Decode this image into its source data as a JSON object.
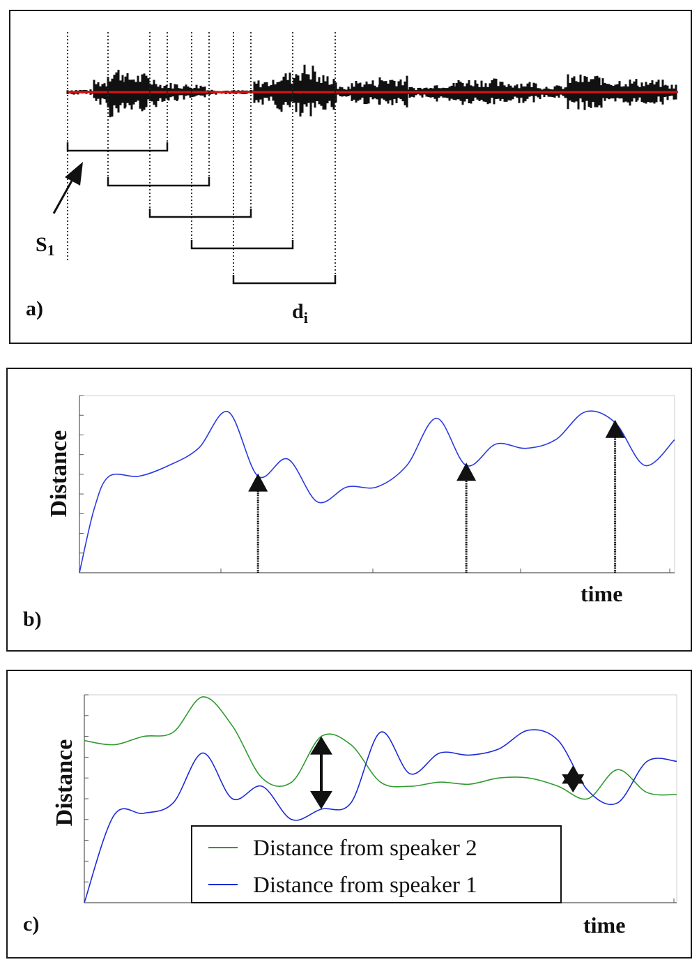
{
  "panel_a": {
    "label": "a)",
    "start_label": "S",
    "start_label_subscript": "1",
    "window_label": "d",
    "window_label_subscript": "i",
    "waveform_color": "#111111",
    "baseline_color": "#e01010"
  },
  "panel_b": {
    "label": "b)",
    "ylabel": "Distance",
    "xlabel": "time",
    "curve_color": "#2b3be0"
  },
  "panel_c": {
    "label": "c)",
    "ylabel": "Distance",
    "xlabel": "time",
    "legend": [
      {
        "name": "Distance from speaker 2",
        "color": "#2f9a2f"
      },
      {
        "name": "Distance from speaker 1",
        "color": "#1d2bd6"
      }
    ]
  },
  "chart_data": [
    {
      "type": "line",
      "panel": "b",
      "xlabel": "time",
      "ylabel": "Distance",
      "x": [
        0,
        0.5,
        1,
        2,
        3,
        4,
        5,
        6,
        7,
        8,
        9,
        10,
        11,
        12,
        13,
        14,
        15,
        16,
        17,
        18,
        19,
        20
      ],
      "series": [
        {
          "values": [
            0,
            30,
            45,
            45,
            50,
            58,
            75,
            45,
            53,
            33,
            40,
            40,
            50,
            72,
            50,
            60,
            58,
            62,
            75,
            70,
            50,
            62
          ],
          "color": "#2b3be0"
        }
      ],
      "peaks_marked": [
        6,
        13,
        18
      ]
    },
    {
      "type": "line",
      "panel": "c",
      "xlabel": "time",
      "ylabel": "Distance",
      "x": [
        0,
        1,
        2,
        3,
        4,
        5,
        6,
        7,
        8,
        9,
        10,
        11,
        12,
        13,
        14,
        15,
        16,
        17,
        18,
        19,
        20
      ],
      "series": [
        {
          "name": "Distance from speaker 2",
          "color": "#2f9a2f",
          "values": [
            78,
            76,
            80,
            82,
            99,
            85,
            60,
            58,
            80,
            76,
            58,
            56,
            58,
            57,
            60,
            60,
            56,
            50,
            64,
            53,
            52
          ]
        },
        {
          "name": "Distance from speaker 1",
          "color": "#1d2bd6",
          "values": [
            0,
            42,
            43,
            48,
            72,
            50,
            56,
            40,
            45,
            48,
            82,
            62,
            72,
            71,
            74,
            83,
            78,
            54,
            48,
            68,
            68
          ]
        }
      ],
      "gaps_marked": [
        8,
        16.5
      ]
    }
  ]
}
